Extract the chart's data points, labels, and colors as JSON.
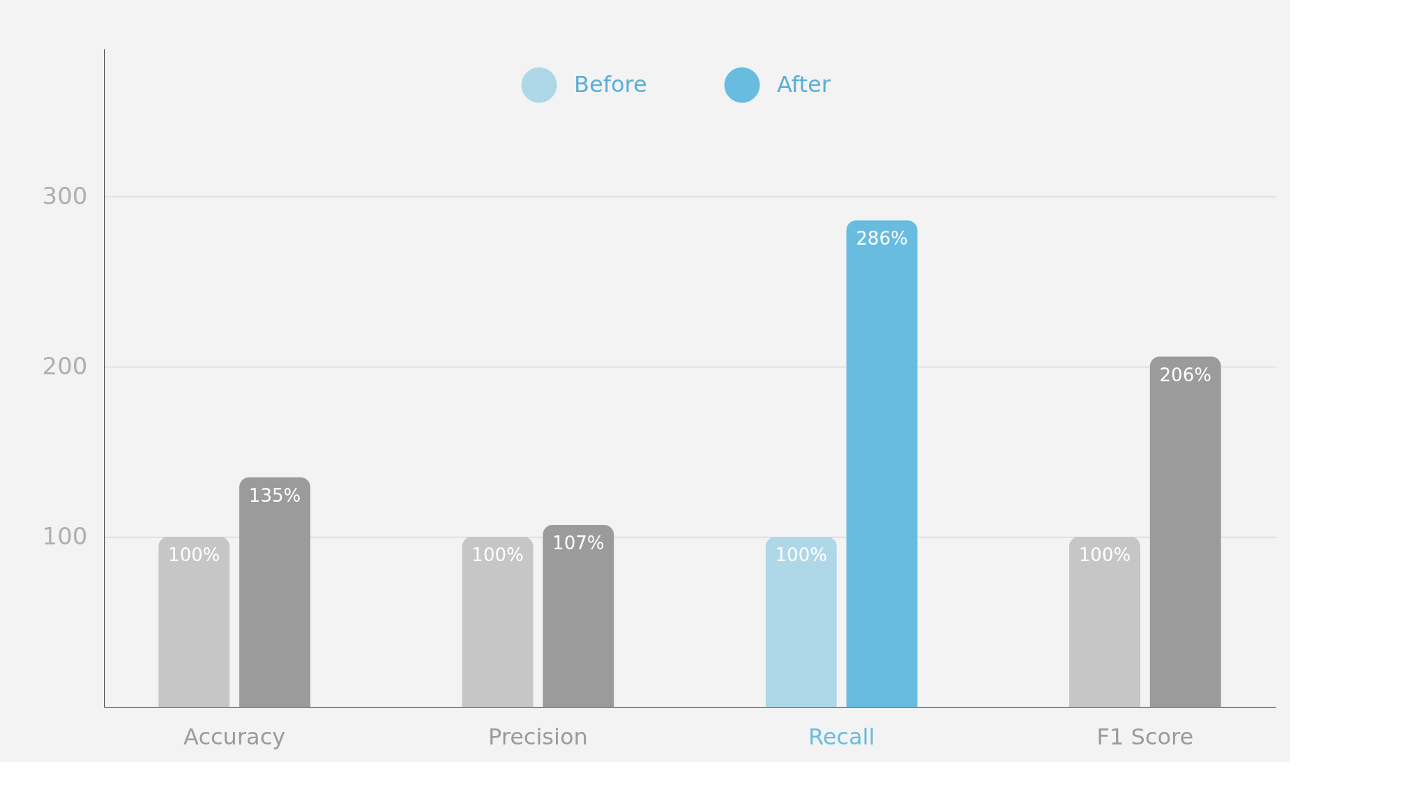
{
  "chart_data": {
    "type": "bar",
    "categories": [
      "Accuracy",
      "Precision",
      "Recall",
      "F1 Score"
    ],
    "series": [
      {
        "name": "Before",
        "color": "#aed8e8",
        "colors": [
          "#c6c6c6",
          "#c6c6c6",
          "#aed8e8",
          "#c6c6c6"
        ],
        "values": [
          100,
          100,
          100,
          100
        ],
        "value_labels": [
          "100%",
          "100%",
          "100%",
          "100%"
        ]
      },
      {
        "name": "After",
        "color": "#67bce0",
        "colors": [
          "#9b9b9b",
          "#9b9b9b",
          "#67bce0",
          "#9b9b9b"
        ],
        "values": [
          135,
          107,
          286,
          206
        ],
        "value_labels": [
          "135%",
          "107%",
          "286%",
          "206%"
        ]
      }
    ],
    "ylim": [
      0,
      387
    ],
    "yticks": [
      100,
      200,
      300
    ],
    "grid": "y",
    "legend": "top"
  }
}
